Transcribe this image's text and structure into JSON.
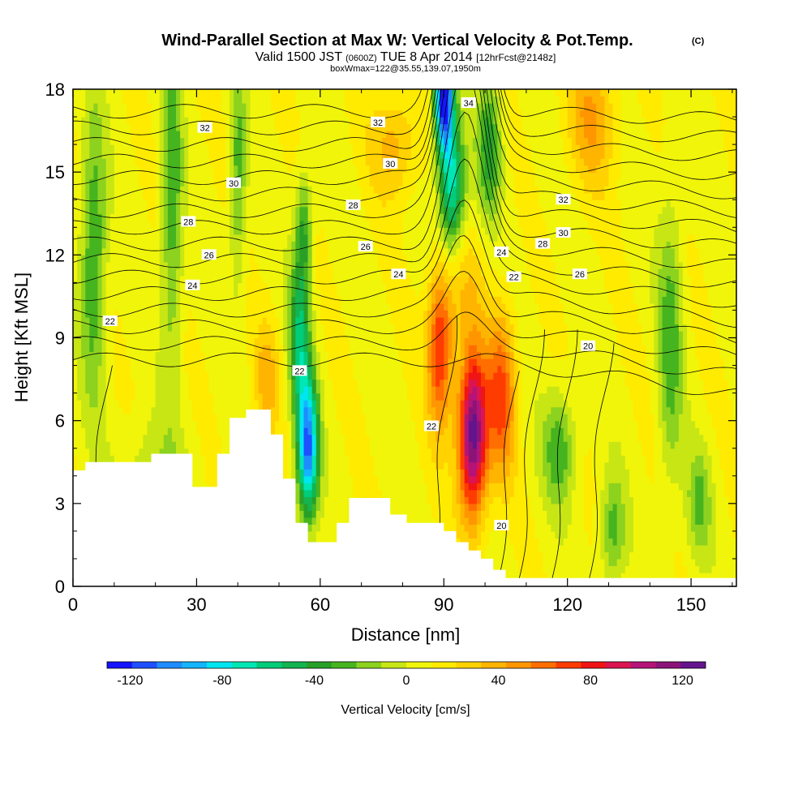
{
  "title": {
    "main": "Wind-Parallel Section at Max W: Vertical Velocity & Pot.Temp.",
    "copyright": "(C)",
    "valid_prefix": "Valid 1500 JST",
    "valid_utc": "(0600Z)",
    "valid_date": "TUE 8 Apr 2014",
    "forecast": "[12hrFcst@2148z]",
    "box_info": "boxWmax=122@35.55,139.07,1950m"
  },
  "chart_data": {
    "type": "heatmap",
    "xlabel": "Distance [nm]",
    "ylabel": "Height [Kft MSL]",
    "xlim": [
      0,
      161
    ],
    "ylim": [
      0,
      18
    ],
    "x_ticks": [
      0,
      30,
      60,
      90,
      120,
      150
    ],
    "x_tick_labels": [
      "0",
      "30",
      "60",
      "90",
      "120",
      "150"
    ],
    "y_ticks": [
      0,
      3,
      6,
      9,
      12,
      15,
      18
    ],
    "y_tick_labels": [
      "0",
      "3",
      "6",
      "9",
      "12",
      "15",
      "18"
    ],
    "colorbar": {
      "label": "Vertical Velocity [cm/s]",
      "min": -130,
      "max": 130,
      "tick_values": [
        -120,
        -80,
        -40,
        0,
        40,
        80,
        120
      ],
      "tick_labels": [
        "-120",
        "-80",
        "-40",
        "0",
        "40",
        "80",
        "120"
      ],
      "colors": [
        "#1414ff",
        "#1e50ff",
        "#1e8cff",
        "#14b4ff",
        "#00e6f0",
        "#00e6b4",
        "#00cc7a",
        "#14b450",
        "#28a028",
        "#46b41e",
        "#8cd21e",
        "#c8e614",
        "#f0f50a",
        "#ffeb00",
        "#ffd200",
        "#ffb400",
        "#ff9600",
        "#ff6e00",
        "#ff3c00",
        "#f01414",
        "#dc1450",
        "#b41478",
        "#8c1478",
        "#64148c"
      ]
    },
    "contour_variable": "Potential Temperature (C)",
    "contour_labels": [
      {
        "text": "32",
        "x": 32,
        "y": 16.6
      },
      {
        "text": "30",
        "x": 39,
        "y": 14.6
      },
      {
        "text": "28",
        "x": 28,
        "y": 13.2
      },
      {
        "text": "26",
        "x": 33,
        "y": 12.0
      },
      {
        "text": "24",
        "x": 29,
        "y": 10.9
      },
      {
        "text": "22",
        "x": 9,
        "y": 9.6
      },
      {
        "text": "32",
        "x": 74,
        "y": 16.8
      },
      {
        "text": "30",
        "x": 77,
        "y": 15.3
      },
      {
        "text": "28",
        "x": 68,
        "y": 13.8
      },
      {
        "text": "26",
        "x": 71,
        "y": 12.3
      },
      {
        "text": "24",
        "x": 79,
        "y": 11.3
      },
      {
        "text": "34",
        "x": 96,
        "y": 17.5
      },
      {
        "text": "32",
        "x": 119,
        "y": 14.0
      },
      {
        "text": "30",
        "x": 119,
        "y": 12.8
      },
      {
        "text": "28",
        "x": 114,
        "y": 12.4
      },
      {
        "text": "24",
        "x": 104,
        "y": 12.1
      },
      {
        "text": "22",
        "x": 107,
        "y": 11.2
      },
      {
        "text": "26",
        "x": 123,
        "y": 11.3
      },
      {
        "text": "20",
        "x": 125,
        "y": 8.7
      },
      {
        "text": "22",
        "x": 55,
        "y": 7.8
      },
      {
        "text": "22",
        "x": 87,
        "y": 5.8
      },
      {
        "text": "20",
        "x": 104,
        "y": 2.2
      }
    ],
    "terrain_profile": [
      [
        0,
        4.2
      ],
      [
        3,
        4.2
      ],
      [
        3,
        4.5
      ],
      [
        19,
        4.5
      ],
      [
        19,
        4.8
      ],
      [
        29,
        4.8
      ],
      [
        29,
        3.6
      ],
      [
        35,
        3.6
      ],
      [
        35,
        4.8
      ],
      [
        38,
        4.8
      ],
      [
        38,
        6.1
      ],
      [
        42,
        6.1
      ],
      [
        42,
        6.4
      ],
      [
        48,
        6.4
      ],
      [
        48,
        5.5
      ],
      [
        51,
        5.5
      ],
      [
        51,
        3.9
      ],
      [
        54,
        3.9
      ],
      [
        54,
        2.3
      ],
      [
        57,
        2.3
      ],
      [
        57,
        1.6
      ],
      [
        64,
        1.6
      ],
      [
        64,
        2.3
      ],
      [
        67,
        2.3
      ],
      [
        67,
        3.2
      ],
      [
        77,
        3.2
      ],
      [
        77,
        2.6
      ],
      [
        81,
        2.6
      ],
      [
        81,
        2.3
      ],
      [
        90,
        2.3
      ],
      [
        90,
        2.0
      ],
      [
        93,
        2.0
      ],
      [
        93,
        1.6
      ],
      [
        96,
        1.6
      ],
      [
        96,
        1.3
      ],
      [
        99,
        1.3
      ],
      [
        99,
        1.0
      ],
      [
        102,
        1.0
      ],
      [
        102,
        0.6
      ],
      [
        105,
        0.6
      ],
      [
        105,
        0.3
      ],
      [
        161,
        0.3
      ]
    ],
    "velocity_features": [
      {
        "x": 97,
        "y": 5.5,
        "value": 125,
        "note": "updraft core"
      },
      {
        "x": 89,
        "y": 8.5,
        "value": 75
      },
      {
        "x": 104,
        "y": 7,
        "value": 70
      },
      {
        "x": 90,
        "y": 18,
        "value": -125,
        "note": "downdraft"
      },
      {
        "x": 57,
        "y": 5,
        "value": -95,
        "note": "downdraft"
      }
    ]
  }
}
